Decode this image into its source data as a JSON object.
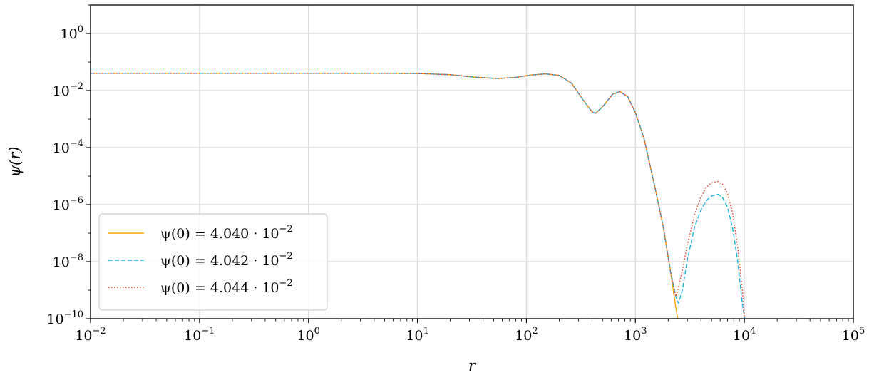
{
  "chart_data": {
    "type": "line",
    "title": "",
    "xlabel": "r",
    "ylabel": "ψ(r)",
    "xscale": "log",
    "yscale": "log",
    "xlim": [
      0.01,
      100000
    ],
    "ylim": [
      1e-10,
      10
    ],
    "grid": true,
    "legend_position": "lower-left",
    "x_ticks": [
      {
        "base": "10",
        "exp": "−2"
      },
      {
        "base": "10",
        "exp": "−1"
      },
      {
        "base": "10",
        "exp": "0"
      },
      {
        "base": "10",
        "exp": "1"
      },
      {
        "base": "10",
        "exp": "2"
      },
      {
        "base": "10",
        "exp": "3"
      },
      {
        "base": "10",
        "exp": "4"
      },
      {
        "base": "10",
        "exp": "5"
      }
    ],
    "y_ticks": [
      {
        "base": "10",
        "exp": "0"
      },
      {
        "base": "10",
        "exp": "−2"
      },
      {
        "base": "10",
        "exp": "−4"
      },
      {
        "base": "10",
        "exp": "−6"
      },
      {
        "base": "10",
        "exp": "−8"
      },
      {
        "base": "10",
        "exp": "−10"
      }
    ],
    "series": [
      {
        "name": "ψ(0) = 4.040 · 10",
        "name_exp": "−2",
        "color": "#FFA500",
        "style": "solid",
        "points": [
          [
            0.01,
            0.0404
          ],
          [
            1,
            0.0404
          ],
          [
            5,
            0.0403
          ],
          [
            10,
            0.0398
          ],
          [
            20,
            0.036
          ],
          [
            35,
            0.029
          ],
          [
            55,
            0.0265
          ],
          [
            80,
            0.029
          ],
          [
            110,
            0.035
          ],
          [
            150,
            0.0385
          ],
          [
            200,
            0.034
          ],
          [
            260,
            0.018
          ],
          [
            330,
            0.0048
          ],
          [
            400,
            0.0018
          ],
          [
            430,
            0.0016
          ],
          [
            500,
            0.0027
          ],
          [
            620,
            0.0075
          ],
          [
            720,
            0.0092
          ],
          [
            850,
            0.0062
          ],
          [
            1000,
            0.0017
          ],
          [
            1200,
            0.00021
          ],
          [
            1500,
            4.6e-06
          ],
          [
            1800,
            1.7e-07
          ],
          [
            2100,
            4.5e-09
          ],
          [
            2350,
            2.5e-10
          ],
          [
            2450,
            1e-10
          ]
        ]
      },
      {
        "name": "ψ(0) = 4.042 · 10",
        "name_exp": "−2",
        "color": "#1CB2E6",
        "style": "dashed",
        "points": [
          [
            0.01,
            0.0404
          ],
          [
            1,
            0.0404
          ],
          [
            5,
            0.0403
          ],
          [
            10,
            0.0398
          ],
          [
            20,
            0.036
          ],
          [
            35,
            0.029
          ],
          [
            55,
            0.0265
          ],
          [
            80,
            0.029
          ],
          [
            110,
            0.035
          ],
          [
            150,
            0.0385
          ],
          [
            200,
            0.034
          ],
          [
            260,
            0.018
          ],
          [
            330,
            0.0048
          ],
          [
            400,
            0.0018
          ],
          [
            430,
            0.0016
          ],
          [
            500,
            0.0027
          ],
          [
            620,
            0.0075
          ],
          [
            720,
            0.0092
          ],
          [
            850,
            0.0062
          ],
          [
            1000,
            0.0017
          ],
          [
            1200,
            0.00021
          ],
          [
            1500,
            4.6e-06
          ],
          [
            1800,
            1.7e-07
          ],
          [
            2100,
            4.5e-09
          ],
          [
            2350,
            6e-10
          ],
          [
            2480,
            3.5e-10
          ],
          [
            2700,
            1e-09
          ],
          [
            3000,
            1.2e-08
          ],
          [
            3500,
            1.7e-07
          ],
          [
            4000,
            6.5e-07
          ],
          [
            4500,
            1.4e-06
          ],
          [
            5000,
            2e-06
          ],
          [
            5700,
            2.3e-06
          ],
          [
            6300,
            1.8e-06
          ],
          [
            7000,
            8e-07
          ],
          [
            7800,
            1.5e-07
          ],
          [
            8700,
            1e-08
          ],
          [
            9600,
            3e-10
          ],
          [
            10100,
            1e-10
          ]
        ]
      },
      {
        "name": "ψ(0) = 4.044 · 10",
        "name_exp": "−2",
        "color": "#E04020",
        "style": "dotted",
        "points": [
          [
            0.01,
            0.0404
          ],
          [
            1,
            0.0404
          ],
          [
            5,
            0.0403
          ],
          [
            10,
            0.0398
          ],
          [
            20,
            0.036
          ],
          [
            35,
            0.029
          ],
          [
            55,
            0.0265
          ],
          [
            80,
            0.029
          ],
          [
            110,
            0.035
          ],
          [
            150,
            0.0385
          ],
          [
            200,
            0.034
          ],
          [
            260,
            0.018
          ],
          [
            330,
            0.0048
          ],
          [
            400,
            0.0018
          ],
          [
            430,
            0.0016
          ],
          [
            500,
            0.0027
          ],
          [
            620,
            0.0075
          ],
          [
            720,
            0.0092
          ],
          [
            850,
            0.0062
          ],
          [
            1000,
            0.0017
          ],
          [
            1200,
            0.00021
          ],
          [
            1500,
            4.6e-06
          ],
          [
            1800,
            1.7e-07
          ],
          [
            2100,
            4.5e-09
          ],
          [
            2350,
            6e-10
          ],
          [
            2450,
            1e-09
          ],
          [
            2700,
            5e-09
          ],
          [
            3000,
            4e-08
          ],
          [
            3500,
            4.5e-07
          ],
          [
            4000,
            1.9e-06
          ],
          [
            4500,
            4.1e-06
          ],
          [
            5000,
            5.8e-06
          ],
          [
            5700,
            6.5e-06
          ],
          [
            6300,
            5.2e-06
          ],
          [
            7000,
            2.5e-06
          ],
          [
            7800,
            5e-07
          ],
          [
            8700,
            3e-08
          ],
          [
            9600,
            1e-09
          ],
          [
            10000,
            1e-10
          ]
        ]
      }
    ]
  }
}
